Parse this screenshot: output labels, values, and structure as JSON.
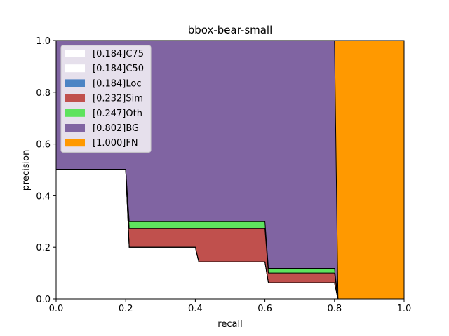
{
  "chart_data": {
    "type": "area",
    "title": "bbox-bear-small",
    "xlabel": "recall",
    "ylabel": "precision",
    "xlim": [
      0,
      1
    ],
    "ylim": [
      0,
      1
    ],
    "xticks": [
      "0.0",
      "0.2",
      "0.4",
      "0.6",
      "0.8",
      "1.0"
    ],
    "yticks": [
      "0.0",
      "0.2",
      "0.4",
      "0.6",
      "0.8",
      "1.0"
    ],
    "grid": false,
    "legend_position": "upper-left",
    "series": [
      {
        "name": "[0.184]C75",
        "color": "#ffffff",
        "x": [
          0,
          0.2,
          0.21,
          0.4,
          0.41,
          0.6,
          0.61,
          0.8,
          0.81,
          1.0
        ],
        "y": [
          0.5,
          0.5,
          0.2,
          0.2,
          0.143,
          0.143,
          0.0625,
          0.0625,
          0,
          0
        ]
      },
      {
        "name": "[0.184]C50",
        "color": "#ffffff",
        "x": [
          0,
          0.2,
          0.21,
          0.4,
          0.41,
          0.6,
          0.61,
          0.8,
          0.81,
          1.0
        ],
        "y": [
          0.5,
          0.5,
          0.2,
          0.2,
          0.143,
          0.143,
          0.0625,
          0.0625,
          0,
          0
        ]
      },
      {
        "name": "[0.184]Loc",
        "color": "#4c84c4",
        "x": [
          0,
          0.2,
          0.21,
          0.4,
          0.41,
          0.6,
          0.61,
          0.8,
          0.81,
          1.0
        ],
        "y": [
          0.5,
          0.5,
          0.2,
          0.2,
          0.143,
          0.143,
          0.0625,
          0.0625,
          0,
          0
        ]
      },
      {
        "name": "[0.232]Sim",
        "color": "#c0504d",
        "x": [
          0,
          0.2,
          0.21,
          0.6,
          0.61,
          0.8,
          0.81,
          1.0
        ],
        "y": [
          0.5,
          0.5,
          0.273,
          0.273,
          0.1,
          0.1,
          0,
          0
        ]
      },
      {
        "name": "[0.247]Oth",
        "color": "#5ee35e",
        "x": [
          0,
          0.2,
          0.21,
          0.6,
          0.61,
          0.8,
          0.81,
          1.0
        ],
        "y": [
          0.5,
          0.5,
          0.3,
          0.3,
          0.118,
          0.118,
          0,
          0
        ]
      },
      {
        "name": "[0.802]BG",
        "color": "#8064a2",
        "x": [
          0,
          0.8,
          0.81,
          1.0
        ],
        "y": [
          1.0,
          1.0,
          0,
          0
        ]
      },
      {
        "name": "[1.000]FN",
        "color": "#ff9900",
        "x": [
          0,
          1.0
        ],
        "y": [
          1.0,
          1.0
        ]
      }
    ]
  }
}
